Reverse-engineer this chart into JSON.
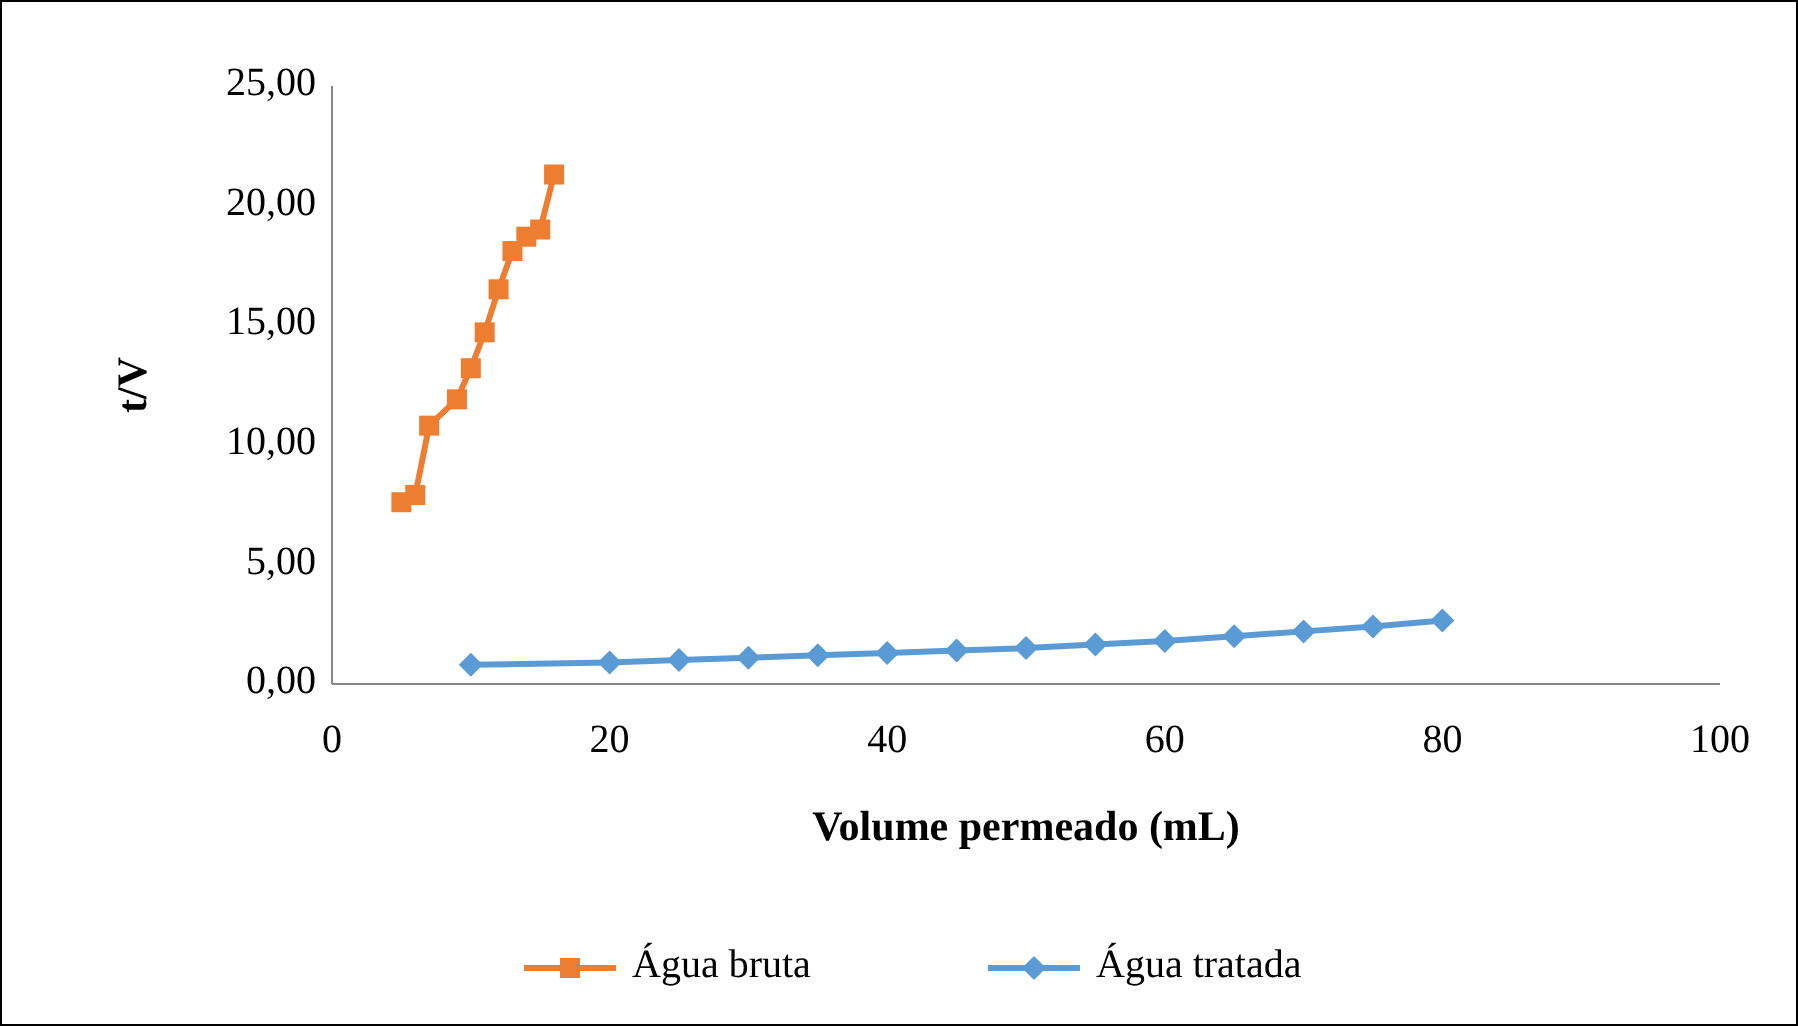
{
  "chart_data": {
    "type": "line",
    "xlabel": "Volume permeado (mL)",
    "ylabel": "t/V",
    "xlim": [
      0,
      100
    ],
    "xticks": [
      0,
      20,
      40,
      60,
      80,
      100
    ],
    "ylim": [
      0,
      25
    ],
    "yticks": [
      {
        "value": 0,
        "label": "0,00"
      },
      {
        "value": 5,
        "label": "5,00"
      },
      {
        "value": 10,
        "label": "10,00"
      },
      {
        "value": 15,
        "label": "15,00"
      },
      {
        "value": 20,
        "label": "20,00"
      },
      {
        "value": 25,
        "label": "25,00"
      }
    ],
    "grid": false,
    "legend": "bottom",
    "series": [
      {
        "name": "Água bruta",
        "color": "#ed7d31",
        "marker": "square",
        "x": [
          5,
          6,
          7,
          9,
          10,
          11,
          12,
          13,
          14,
          15,
          16
        ],
        "values": [
          7.6,
          7.9,
          10.8,
          11.9,
          13.2,
          14.7,
          16.5,
          18.1,
          18.7,
          19.0,
          21.3
        ]
      },
      {
        "name": "Água tratada",
        "color": "#5b9bd5",
        "marker": "diamond",
        "x": [
          10,
          20,
          25,
          30,
          35,
          40,
          45,
          50,
          55,
          60,
          65,
          70,
          75,
          80
        ],
        "values": [
          0.8,
          0.9,
          1.0,
          1.1,
          1.2,
          1.3,
          1.4,
          1.5,
          1.65,
          1.8,
          2.0,
          2.2,
          2.4,
          2.65
        ]
      }
    ]
  }
}
